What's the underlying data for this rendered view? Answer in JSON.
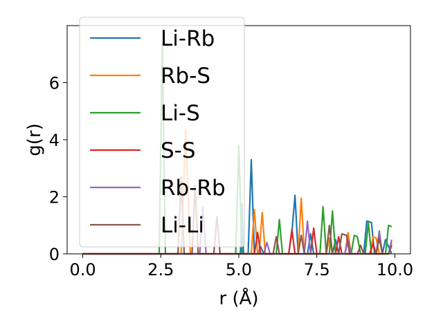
{
  "chart_data": {
    "type": "line",
    "title": "",
    "xlabel": "r (Å)",
    "ylabel": "g(r)",
    "xlim": [
      -0.5,
      10.5
    ],
    "ylim": [
      0,
      8
    ],
    "xticks": [
      0.0,
      2.5,
      5.0,
      7.5,
      10.0
    ],
    "xtick_labels": [
      "0.0",
      "2.5",
      "5.0",
      "7.5",
      "10.0"
    ],
    "yticks": [
      0,
      2,
      4,
      6
    ],
    "ytick_labels": [
      "0",
      "2",
      "4",
      "6"
    ],
    "grid": false,
    "legend_position": "upper-left",
    "series": [
      {
        "name": "Li-Rb",
        "color": "#1f77b4",
        "points": [
          [
            0,
            0
          ],
          [
            5.05,
            0
          ],
          [
            5.1,
            1.75
          ],
          [
            5.15,
            0
          ],
          [
            5.3,
            0
          ],
          [
            5.4,
            3.3
          ],
          [
            5.5,
            0
          ],
          [
            5.6,
            0
          ],
          [
            5.7,
            0.25
          ],
          [
            5.8,
            0
          ],
          [
            6.6,
            0
          ],
          [
            6.7,
            0.75
          ],
          [
            6.8,
            2.05
          ],
          [
            6.9,
            0
          ],
          [
            7.2,
            0
          ],
          [
            7.3,
            0.7
          ],
          [
            7.4,
            0
          ],
          [
            8.0,
            0
          ],
          [
            8.1,
            0.5
          ],
          [
            8.2,
            0
          ],
          [
            9.0,
            0
          ],
          [
            9.1,
            1.15
          ],
          [
            9.25,
            1.1
          ],
          [
            9.35,
            0
          ],
          [
            9.6,
            0
          ],
          [
            9.7,
            0.5
          ],
          [
            9.9,
            0
          ]
        ]
      },
      {
        "name": "Rb-S",
        "color": "#ff7f0e",
        "points": [
          [
            0,
            0
          ],
          [
            3.15,
            0
          ],
          [
            3.3,
            4.35
          ],
          [
            3.45,
            0
          ],
          [
            5.4,
            0
          ],
          [
            5.5,
            1.55
          ],
          [
            5.6,
            0
          ],
          [
            5.65,
            0
          ],
          [
            5.75,
            1.45
          ],
          [
            5.85,
            0
          ],
          [
            6.9,
            0
          ],
          [
            7.0,
            1.95
          ],
          [
            7.1,
            0
          ],
          [
            7.8,
            0
          ],
          [
            7.9,
            0.55
          ],
          [
            8.0,
            0
          ],
          [
            8.4,
            0
          ],
          [
            8.5,
            0.75
          ],
          [
            8.6,
            0
          ],
          [
            9.2,
            0
          ],
          [
            9.3,
            0.6
          ],
          [
            9.4,
            0.55
          ],
          [
            9.5,
            0
          ],
          [
            9.8,
            0
          ],
          [
            9.9,
            0.4
          ]
        ]
      },
      {
        "name": "Li-S",
        "color": "#2ca02c",
        "points": [
          [
            0,
            0
          ],
          [
            2.45,
            0
          ],
          [
            2.55,
            7.4
          ],
          [
            2.65,
            0
          ],
          [
            4.9,
            0
          ],
          [
            5.0,
            3.8
          ],
          [
            5.1,
            0
          ],
          [
            6.2,
            0
          ],
          [
            6.3,
            1.2
          ],
          [
            6.4,
            0
          ],
          [
            7.6,
            0
          ],
          [
            7.7,
            1.65
          ],
          [
            7.8,
            0
          ],
          [
            7.9,
            0
          ],
          [
            8.0,
            1.5
          ],
          [
            8.1,
            0
          ],
          [
            8.6,
            0
          ],
          [
            8.7,
            0.65
          ],
          [
            8.8,
            0.6
          ],
          [
            8.9,
            0
          ],
          [
            9.05,
            0
          ],
          [
            9.15,
            1.1
          ],
          [
            9.25,
            0
          ],
          [
            9.7,
            0
          ],
          [
            9.8,
            1.0
          ],
          [
            9.9,
            0.95
          ]
        ]
      },
      {
        "name": "S-S",
        "color": "#d62728",
        "points": [
          [
            0,
            0
          ],
          [
            5.5,
            0
          ],
          [
            5.6,
            0.75
          ],
          [
            5.7,
            0
          ],
          [
            6.6,
            0
          ],
          [
            6.7,
            0.85
          ],
          [
            6.8,
            0
          ],
          [
            7.3,
            0
          ],
          [
            7.4,
            0.9
          ],
          [
            7.5,
            0
          ],
          [
            8.1,
            0
          ],
          [
            8.2,
            0.6
          ],
          [
            8.3,
            0
          ],
          [
            9.2,
            0
          ],
          [
            9.3,
            0.35
          ],
          [
            9.4,
            0
          ],
          [
            9.8,
            0
          ],
          [
            9.9,
            0.3
          ]
        ]
      },
      {
        "name": "Rb-Rb",
        "color": "#9467bd",
        "points": [
          [
            0,
            0
          ],
          [
            3.75,
            0
          ],
          [
            3.85,
            1.65
          ],
          [
            3.95,
            0
          ],
          [
            5.8,
            0
          ],
          [
            5.9,
            0.4
          ],
          [
            6.0,
            0
          ],
          [
            7.1,
            0
          ],
          [
            7.2,
            1.15
          ],
          [
            7.3,
            0
          ],
          [
            8.4,
            0
          ],
          [
            8.5,
            0.5
          ],
          [
            8.6,
            0
          ],
          [
            9.4,
            0
          ],
          [
            9.5,
            0.8
          ],
          [
            9.6,
            0
          ],
          [
            9.8,
            0
          ],
          [
            9.9,
            0.5
          ]
        ]
      },
      {
        "name": "Li-Li",
        "color": "#8c564b",
        "points": [
          [
            0,
            0
          ],
          [
            3.05,
            0
          ],
          [
            3.15,
            2.7
          ],
          [
            3.25,
            0
          ],
          [
            3.5,
            0
          ],
          [
            3.6,
            2.4
          ],
          [
            3.7,
            0
          ],
          [
            4.2,
            0
          ],
          [
            4.3,
            1.3
          ],
          [
            4.4,
            0
          ],
          [
            6.1,
            0
          ],
          [
            6.2,
            0.6
          ],
          [
            6.3,
            0
          ],
          [
            6.9,
            0
          ],
          [
            7.0,
            0.65
          ],
          [
            7.1,
            0
          ],
          [
            7.8,
            0
          ],
          [
            7.9,
            1.0
          ],
          [
            8.0,
            0
          ],
          [
            8.2,
            0
          ],
          [
            8.3,
            0.7
          ],
          [
            8.45,
            0.65
          ],
          [
            8.55,
            0
          ],
          [
            8.8,
            0
          ],
          [
            8.9,
            0.3
          ],
          [
            9.0,
            0
          ],
          [
            9.4,
            0
          ],
          [
            9.5,
            0.55
          ],
          [
            9.6,
            0
          ],
          [
            9.8,
            0
          ],
          [
            9.9,
            0.3
          ]
        ]
      }
    ]
  }
}
